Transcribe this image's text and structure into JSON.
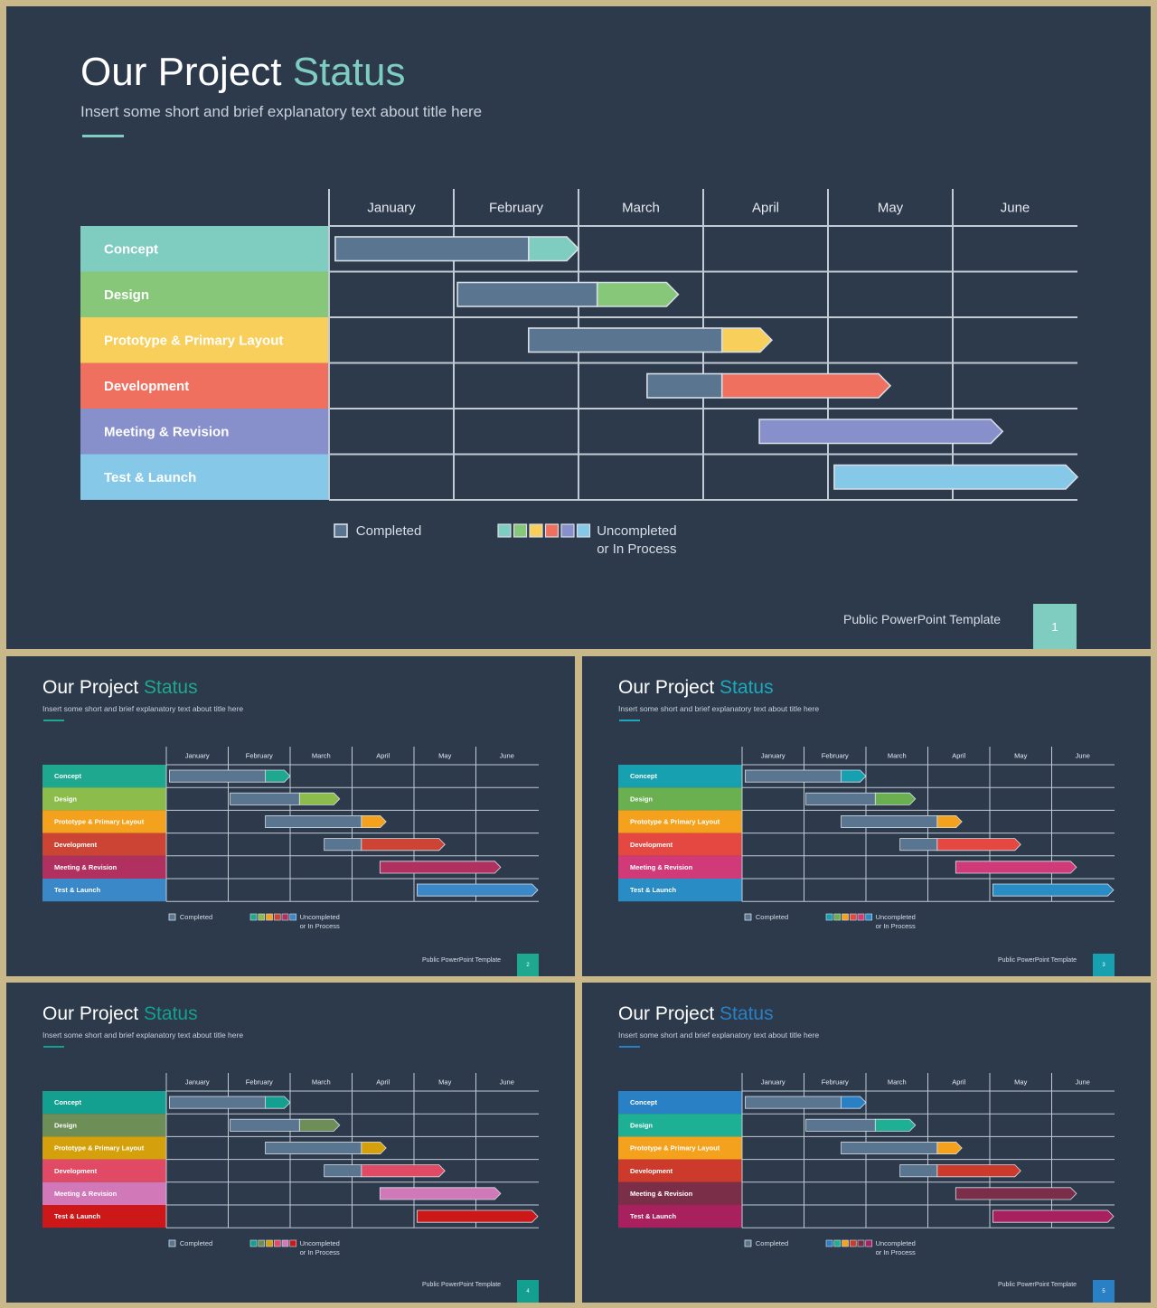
{
  "title_main": "Our Project",
  "title_accent": "Status",
  "subtitle": "Insert some short and brief explanatory text about title here",
  "months": [
    "January",
    "February",
    "March",
    "April",
    "May",
    "June"
  ],
  "tasks": [
    {
      "label": "Concept",
      "start": 0.05,
      "completed_until": 1.6,
      "end": 2.0
    },
    {
      "label": "Design",
      "start": 1.03,
      "completed_until": 2.15,
      "end": 2.8
    },
    {
      "label": "Prototype & Primary Layout",
      "start": 1.6,
      "completed_until": 3.15,
      "end": 3.55
    },
    {
      "label": "Development",
      "start": 2.55,
      "completed_until": 3.15,
      "end": 4.5
    },
    {
      "label": "Meeting & Revision",
      "start": 3.45,
      "completed_until": 3.45,
      "end": 5.4
    },
    {
      "label": "Test & Launch",
      "start": 4.05,
      "completed_until": 4.05,
      "end": 6.0
    }
  ],
  "legend": {
    "completed_label": "Completed",
    "uncompleted_line1": "Uncompleted",
    "uncompleted_line2": "or In Process"
  },
  "footer_text": "Public PowerPoint Template",
  "completed_color": "#5a7590",
  "slides": [
    {
      "page": "1",
      "accent": "#7ecdc0",
      "page_color": "#7ecdc0",
      "colors": [
        "#7ecdc0",
        "#86c77a",
        "#f8cf5a",
        "#f07060",
        "#8890cc",
        "#86c8e8"
      ]
    },
    {
      "page": "2",
      "accent": "#1ea890",
      "page_color": "#1ea890",
      "colors": [
        "#1ea890",
        "#8cbd4c",
        "#f4a21e",
        "#cc4434",
        "#b03060",
        "#3a88c8"
      ]
    },
    {
      "page": "3",
      "accent": "#1aaabb",
      "page_color": "#16a0b0",
      "colors": [
        "#16a0b0",
        "#6ab050",
        "#f4a21e",
        "#e44840",
        "#d03a78",
        "#2a8cc4"
      ]
    },
    {
      "page": "4",
      "accent": "#14a090",
      "page_color": "#14a090",
      "colors": [
        "#14a090",
        "#6e8e58",
        "#d4a00c",
        "#e04a64",
        "#d078b8",
        "#cc1818"
      ]
    },
    {
      "page": "5",
      "accent": "#2a80c4",
      "page_color": "#2a80c4",
      "colors": [
        "#2a80c4",
        "#1eb094",
        "#f4a21e",
        "#cc3a2c",
        "#7a2e48",
        "#a8205e"
      ]
    }
  ]
}
